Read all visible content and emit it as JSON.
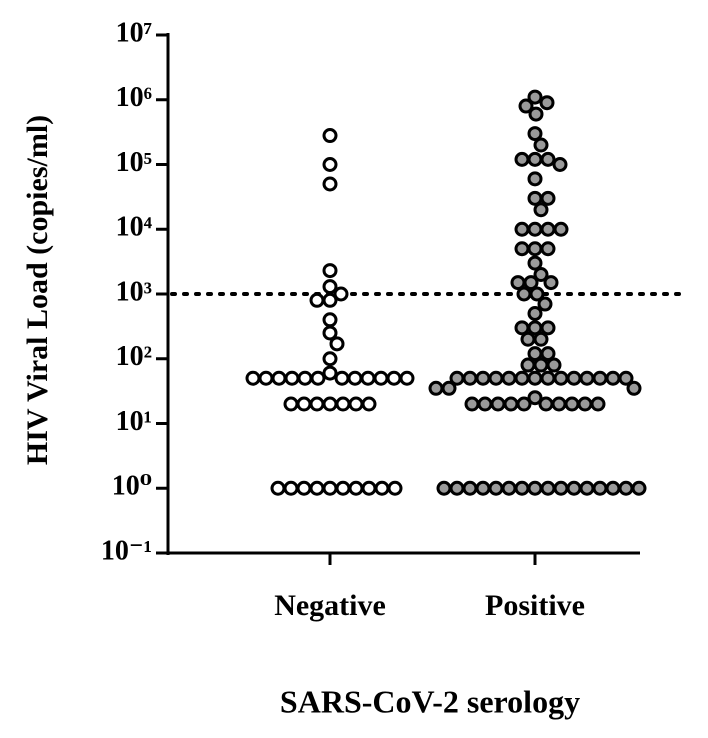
{
  "chart_data": {
    "type": "scatter",
    "x_label": "SARS-CoV-2 serology",
    "y_label": "HIV Viral Load (copies/ml)",
    "log_y": true,
    "ylim": [
      0.1,
      10000000
    ],
    "yticks": [
      {
        "value": 10000000,
        "label": "10⁷"
      },
      {
        "value": 1000000,
        "label": "10⁶"
      },
      {
        "value": 100000,
        "label": "10⁵"
      },
      {
        "value": 10000,
        "label": "10⁴"
      },
      {
        "value": 1000,
        "label": "10³"
      },
      {
        "value": 100,
        "label": "10²"
      },
      {
        "value": 10,
        "label": "10¹"
      },
      {
        "value": 1,
        "label": "10⁰"
      },
      {
        "value": 0.1,
        "label": "10⁻¹"
      }
    ],
    "threshold": 1000,
    "categories": [
      "Negative",
      "Positive"
    ],
    "series": [
      {
        "name": "Negative",
        "color": "#ffffff",
        "values": [
          280000,
          100000,
          50000,
          2300,
          1300,
          1000,
          800,
          800,
          400,
          250,
          170,
          100,
          60,
          50,
          50,
          50,
          50,
          50,
          50,
          50,
          50,
          50,
          50,
          50,
          50,
          20,
          20,
          20,
          20,
          20,
          20,
          20,
          1,
          1,
          1,
          1,
          1,
          1,
          1,
          1,
          1,
          1
        ]
      },
      {
        "name": "Positive",
        "color": "#9a9a9a",
        "values": [
          1100000,
          900000,
          800000,
          600000,
          300000,
          200000,
          120000,
          120000,
          120000,
          100000,
          60000,
          30000,
          30000,
          20000,
          10000,
          10000,
          10000,
          10000,
          5000,
          5000,
          5000,
          3000,
          2000,
          1500,
          1500,
          1500,
          1000,
          1000,
          700,
          500,
          300,
          300,
          300,
          200,
          200,
          120,
          120,
          80,
          80,
          80,
          50,
          50,
          50,
          50,
          50,
          50,
          50,
          50,
          50,
          50,
          50,
          50,
          50,
          50,
          35,
          35,
          35,
          25,
          20,
          20,
          20,
          20,
          20,
          20,
          20,
          20,
          20,
          20,
          1,
          1,
          1,
          1,
          1,
          1,
          1,
          1,
          1,
          1,
          1,
          1,
          1,
          1,
          1,
          1
        ]
      }
    ]
  }
}
